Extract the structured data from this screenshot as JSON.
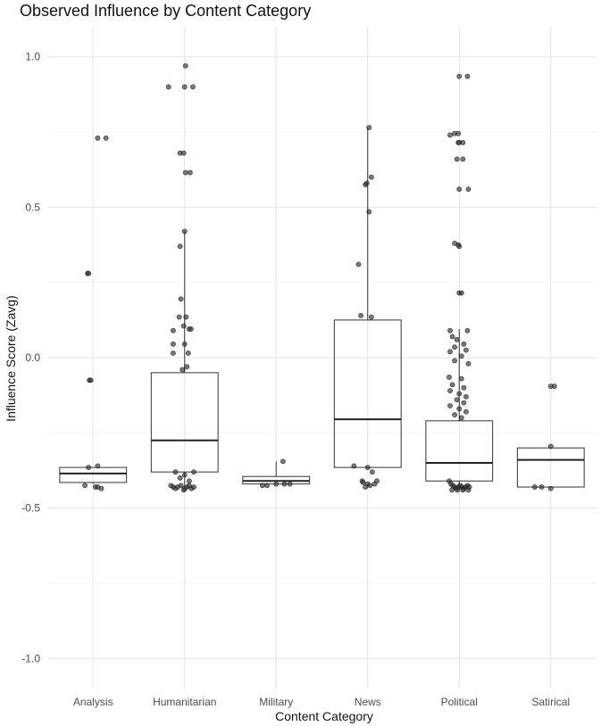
{
  "chart_data": {
    "type": "box",
    "title": "Observed Influence by Content Category",
    "xlabel": "Content Category",
    "ylabel": "Influence Score (Zavg)",
    "ylim": [
      -1.1,
      1.1
    ],
    "yticks": [
      1.0,
      0.5,
      0.0,
      -0.5,
      -1.0
    ],
    "ytick_labels": [
      "1.0",
      "0.5",
      "0.0",
      "-0.5",
      "-1.0"
    ],
    "grid": true,
    "legend": "none",
    "categories": [
      "Analysis",
      "Humanitarian",
      "Military",
      "News",
      "Political",
      "Satirical"
    ],
    "boxes": [
      {
        "category": "Analysis",
        "lower_whisker": -0.42,
        "q1": -0.415,
        "median": -0.385,
        "q3": -0.365,
        "upper_whisker": -0.365
      },
      {
        "category": "Humanitarian",
        "lower_whisker": -0.43,
        "q1": -0.38,
        "median": -0.275,
        "q3": -0.05,
        "upper_whisker": 0.42
      },
      {
        "category": "Military",
        "lower_whisker": -0.42,
        "q1": -0.42,
        "median": -0.41,
        "q3": -0.395,
        "upper_whisker": -0.345
      },
      {
        "category": "News",
        "lower_whisker": -0.365,
        "q1": -0.365,
        "median": -0.205,
        "q3": 0.125,
        "upper_whisker": 0.765
      },
      {
        "category": "Political",
        "lower_whisker": -0.43,
        "q1": -0.41,
        "median": -0.35,
        "q3": -0.21,
        "upper_whisker": 0.095
      },
      {
        "category": "Satirical",
        "lower_whisker": -0.43,
        "q1": -0.43,
        "median": -0.34,
        "q3": -0.3,
        "upper_whisker": -0.3
      }
    ],
    "points": [
      [
        [
          0.1,
          0.73
        ],
        [
          0.28,
          0.73
        ],
        [
          -0.12,
          0.28
        ],
        [
          -0.1,
          0.28
        ],
        [
          -0.08,
          -0.075
        ],
        [
          -0.05,
          -0.075
        ],
        [
          -0.18,
          -0.425
        ],
        [
          0.05,
          -0.43
        ],
        [
          0.1,
          -0.43
        ],
        [
          0.18,
          -0.435
        ],
        [
          -0.1,
          -0.365
        ],
        [
          0.1,
          -0.36
        ]
      ],
      [
        [
          -0.35,
          0.9
        ],
        [
          0.02,
          0.97
        ],
        [
          0.0,
          0.9
        ],
        [
          0.18,
          0.9
        ],
        [
          -0.1,
          0.68
        ],
        [
          -0.02,
          0.68
        ],
        [
          0.02,
          0.615
        ],
        [
          0.12,
          0.615
        ],
        [
          0.0,
          0.42
        ],
        [
          -0.1,
          0.37
        ],
        [
          -0.08,
          0.195
        ],
        [
          -0.12,
          0.135
        ],
        [
          0.03,
          0.135
        ],
        [
          -0.02,
          0.105
        ],
        [
          0.1,
          0.095
        ],
        [
          0.14,
          0.095
        ],
        [
          -0.25,
          0.09
        ],
        [
          -0.25,
          0.045
        ],
        [
          0.0,
          0.045
        ],
        [
          -0.25,
          0.015
        ],
        [
          0.08,
          0.015
        ],
        [
          -0.05,
          -0.04
        ],
        [
          0.05,
          -0.03
        ],
        [
          -0.2,
          -0.38
        ],
        [
          0.2,
          -0.38
        ],
        [
          0.0,
          -0.39
        ],
        [
          -0.1,
          -0.4
        ],
        [
          0.1,
          -0.41
        ],
        [
          -0.3,
          -0.425
        ],
        [
          -0.25,
          -0.43
        ],
        [
          -0.2,
          -0.435
        ],
        [
          -0.15,
          -0.43
        ],
        [
          -0.08,
          -0.425
        ],
        [
          0.0,
          -0.435
        ],
        [
          0.05,
          -0.43
        ],
        [
          0.1,
          -0.425
        ],
        [
          0.15,
          -0.435
        ],
        [
          0.2,
          -0.43
        ],
        [
          -0.02,
          -0.44
        ]
      ],
      [
        [
          -0.3,
          -0.425
        ],
        [
          -0.2,
          -0.425
        ],
        [
          0.0,
          -0.42
        ],
        [
          0.18,
          -0.42
        ],
        [
          0.3,
          -0.42
        ],
        [
          0.15,
          -0.345
        ]
      ],
      [
        [
          0.03,
          0.765
        ],
        [
          -0.05,
          0.575
        ],
        [
          -0.02,
          0.58
        ],
        [
          0.08,
          0.6
        ],
        [
          0.03,
          0.485
        ],
        [
          -0.2,
          0.31
        ],
        [
          -0.15,
          0.14
        ],
        [
          0.08,
          0.135
        ],
        [
          -0.3,
          -0.36
        ],
        [
          0.0,
          -0.365
        ],
        [
          0.1,
          -0.38
        ],
        [
          -0.12,
          -0.41
        ],
        [
          -0.1,
          -0.415
        ],
        [
          0.0,
          -0.42
        ],
        [
          0.15,
          -0.42
        ],
        [
          0.2,
          -0.41
        ],
        [
          -0.05,
          -0.43
        ],
        [
          0.05,
          -0.425
        ]
      ],
      [
        [
          0.0,
          0.935
        ],
        [
          0.18,
          0.935
        ],
        [
          -0.2,
          0.74
        ],
        [
          -0.1,
          0.745
        ],
        [
          -0.02,
          0.745
        ],
        [
          -0.02,
          0.715
        ],
        [
          0.08,
          0.715
        ],
        [
          0.0,
          0.715
        ],
        [
          -0.05,
          0.66
        ],
        [
          0.08,
          0.66
        ],
        [
          0.0,
          0.56
        ],
        [
          0.2,
          0.56
        ],
        [
          -0.1,
          0.38
        ],
        [
          -0.02,
          0.375
        ],
        [
          0.0,
          0.37
        ],
        [
          0.0,
          0.215
        ],
        [
          0.05,
          0.215
        ],
        [
          -0.2,
          0.09
        ],
        [
          0.18,
          0.09
        ],
        [
          -0.15,
          0.07
        ],
        [
          -0.05,
          0.06
        ],
        [
          0.1,
          0.045
        ],
        [
          -0.1,
          0.035
        ],
        [
          0.15,
          0.025
        ],
        [
          -0.2,
          0.02
        ],
        [
          0.05,
          0.005
        ],
        [
          -0.1,
          -0.01
        ],
        [
          0.2,
          -0.02
        ],
        [
          -0.22,
          -0.065
        ],
        [
          0.05,
          -0.07
        ],
        [
          -0.15,
          -0.09
        ],
        [
          0.1,
          -0.1
        ],
        [
          -0.2,
          -0.11
        ],
        [
          0.0,
          -0.12
        ],
        [
          0.15,
          -0.13
        ],
        [
          -0.05,
          -0.14
        ],
        [
          0.1,
          -0.15
        ],
        [
          -0.2,
          -0.16
        ],
        [
          0.0,
          -0.17
        ],
        [
          0.15,
          -0.18
        ],
        [
          -0.1,
          -0.19
        ],
        [
          0.05,
          -0.2
        ],
        [
          -0.22,
          -0.41
        ],
        [
          -0.18,
          -0.42
        ],
        [
          -0.14,
          -0.425
        ],
        [
          -0.1,
          -0.43
        ],
        [
          -0.06,
          -0.435
        ],
        [
          -0.02,
          -0.43
        ],
        [
          0.02,
          -0.425
        ],
        [
          0.06,
          -0.43
        ],
        [
          0.1,
          -0.435
        ],
        [
          0.14,
          -0.43
        ],
        [
          0.18,
          -0.425
        ],
        [
          0.22,
          -0.43
        ],
        [
          -0.16,
          -0.44
        ],
        [
          -0.04,
          -0.44
        ],
        [
          0.08,
          -0.44
        ],
        [
          0.2,
          -0.44
        ]
      ],
      [
        [
          0.0,
          -0.095
        ],
        [
          0.08,
          -0.095
        ],
        [
          0.0,
          -0.295
        ],
        [
          -0.35,
          -0.43
        ],
        [
          -0.2,
          -0.43
        ],
        [
          0.0,
          -0.435
        ]
      ]
    ]
  }
}
